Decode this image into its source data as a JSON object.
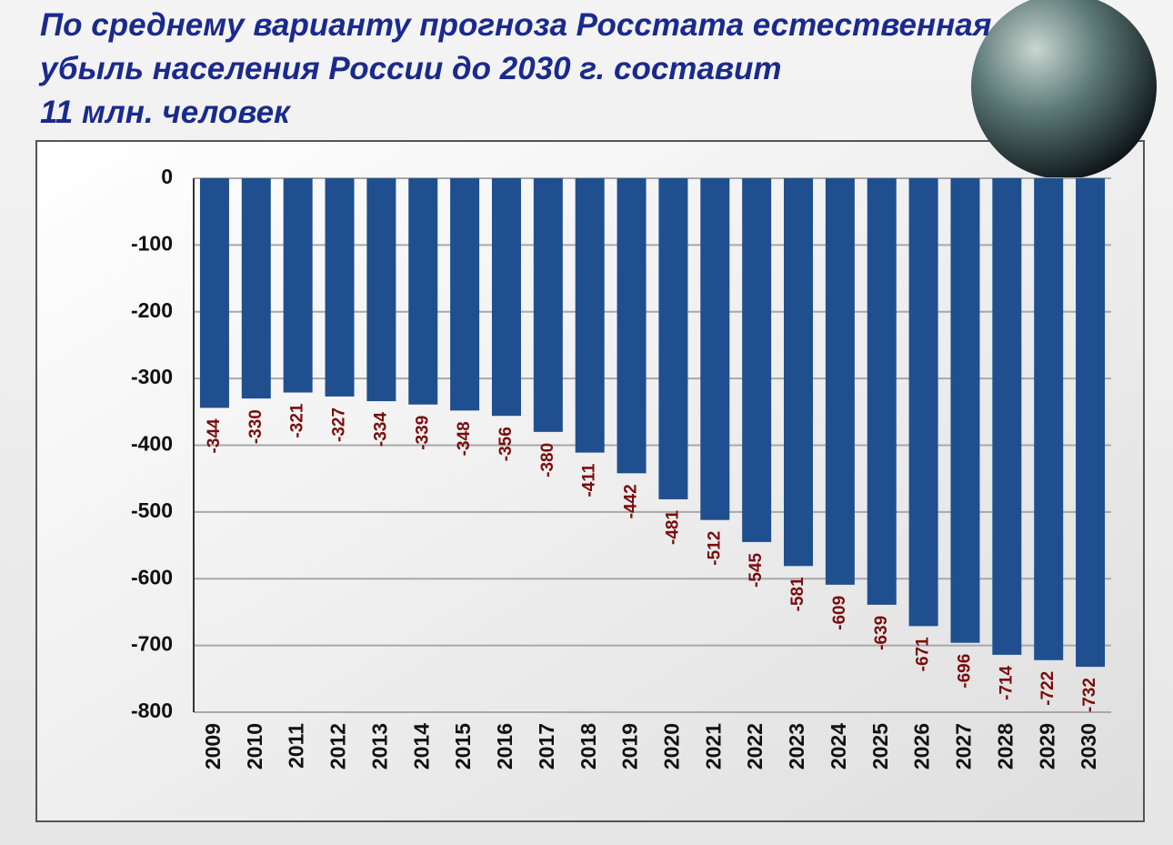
{
  "chart_data": {
    "type": "bar",
    "title": "По среднему варианту прогноза Росстата естественная\nубыль населения России до 2030 г. составит\n11 млн. человек",
    "categories": [
      "2009",
      "2010",
      "2011",
      "2012",
      "2013",
      "2014",
      "2015",
      "2016",
      "2017",
      "2018",
      "2019",
      "2020",
      "2021",
      "2022",
      "2023",
      "2024",
      "2025",
      "2026",
      "2027",
      "2028",
      "2029",
      "2030"
    ],
    "values": [
      -344,
      -330,
      -321,
      -327,
      -334,
      -339,
      -348,
      -356,
      -380,
      -411,
      -442,
      -481,
      -512,
      -545,
      -581,
      -609,
      -639,
      -671,
      -696,
      -714,
      -722,
      -732
    ],
    "color": "#1f4f8f",
    "ylim": [
      -800,
      0
    ],
    "yticks": [
      0,
      -100,
      -200,
      -300,
      -400,
      -500,
      -600,
      -700,
      -800
    ],
    "grid": true
  }
}
